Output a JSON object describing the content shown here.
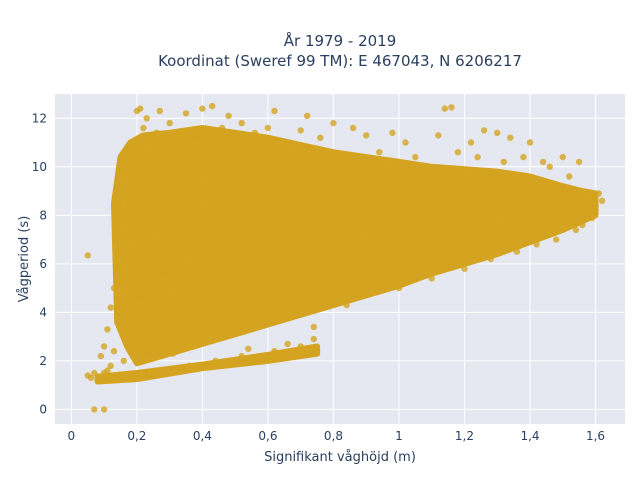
{
  "chart_data": {
    "type": "scatter",
    "title_line1": "År 1979 - 2019",
    "title_line2": "Koordinat (Sweref 99 TM): E 467043, N 6206217",
    "xlabel": "Signifikant våghöjd (m)",
    "ylabel": "Vågperiod (s)",
    "xlim": [
      -0.05,
      1.69
    ],
    "ylim": [
      -0.6,
      13.0
    ],
    "x_ticks": [
      {
        "value": 0,
        "label": "0"
      },
      {
        "value": 0.2,
        "label": "0,2"
      },
      {
        "value": 0.4,
        "label": "0,4"
      },
      {
        "value": 0.6,
        "label": "0,6"
      },
      {
        "value": 0.8,
        "label": "0,8"
      },
      {
        "value": 1.0,
        "label": "1"
      },
      {
        "value": 1.2,
        "label": "1,2"
      },
      {
        "value": 1.4,
        "label": "1,4"
      },
      {
        "value": 1.6,
        "label": "1,6"
      }
    ],
    "y_ticks": [
      {
        "value": 0,
        "label": "0"
      },
      {
        "value": 2,
        "label": "2"
      },
      {
        "value": 4,
        "label": "4"
      },
      {
        "value": 6,
        "label": "6"
      },
      {
        "value": 8,
        "label": "8"
      },
      {
        "value": 10,
        "label": "10"
      },
      {
        "value": 12,
        "label": "12"
      }
    ],
    "grid": true,
    "marker_color": "#d4a420",
    "plot_bg": "#e5e8f0",
    "grid_color": "#ffffff",
    "points": [
      [
        0.07,
        0.0
      ],
      [
        0.1,
        0.0
      ],
      [
        0.05,
        6.35
      ],
      [
        0.05,
        1.4
      ],
      [
        0.06,
        1.3
      ],
      [
        0.07,
        1.5
      ],
      [
        0.08,
        1.2
      ],
      [
        0.09,
        1.35
      ],
      [
        0.1,
        1.5
      ],
      [
        0.11,
        1.6
      ],
      [
        0.09,
        2.2
      ],
      [
        0.1,
        2.6
      ],
      [
        0.11,
        3.3
      ],
      [
        0.12,
        4.2
      ],
      [
        0.12,
        1.8
      ],
      [
        0.13,
        5.0
      ],
      [
        0.13,
        2.4
      ],
      [
        0.14,
        6.2
      ],
      [
        0.14,
        3.6
      ],
      [
        0.15,
        7.4
      ],
      [
        0.15,
        4.8
      ],
      [
        0.16,
        8.4
      ],
      [
        0.16,
        2.0
      ],
      [
        0.17,
        9.4
      ],
      [
        0.17,
        5.8
      ],
      [
        0.18,
        10.2
      ],
      [
        0.18,
        3.0
      ],
      [
        0.19,
        11.0
      ],
      [
        0.19,
        6.8
      ],
      [
        0.2,
        12.3
      ],
      [
        0.2,
        8.0
      ],
      [
        0.21,
        12.4
      ],
      [
        0.21,
        4.4
      ],
      [
        0.22,
        11.6
      ],
      [
        0.22,
        9.0
      ],
      [
        0.23,
        12.0
      ],
      [
        0.23,
        2.1
      ],
      [
        0.24,
        10.8
      ],
      [
        0.25,
        7.2
      ],
      [
        0.26,
        11.4
      ],
      [
        0.27,
        12.3
      ],
      [
        0.28,
        5.4
      ],
      [
        0.29,
        10.6
      ],
      [
        0.3,
        11.8
      ],
      [
        0.31,
        2.3
      ],
      [
        0.32,
        8.6
      ],
      [
        0.33,
        11.2
      ],
      [
        0.35,
        12.2
      ],
      [
        0.36,
        6.2
      ],
      [
        0.38,
        11.0
      ],
      [
        0.4,
        12.4
      ],
      [
        0.41,
        9.4
      ],
      [
        0.43,
        12.5
      ],
      [
        0.44,
        3.1
      ],
      [
        0.46,
        11.6
      ],
      [
        0.48,
        12.1
      ],
      [
        0.5,
        10.2
      ],
      [
        0.52,
        11.8
      ],
      [
        0.54,
        2.5
      ],
      [
        0.56,
        11.4
      ],
      [
        0.58,
        10.0
      ],
      [
        0.6,
        11.6
      ],
      [
        0.62,
        12.3
      ],
      [
        0.64,
        11.0
      ],
      [
        0.66,
        2.7
      ],
      [
        0.68,
        10.8
      ],
      [
        0.7,
        11.5
      ],
      [
        0.72,
        12.1
      ],
      [
        0.74,
        3.4
      ],
      [
        0.76,
        11.2
      ],
      [
        0.78,
        10.6
      ],
      [
        0.8,
        11.8
      ],
      [
        0.82,
        10.2
      ],
      [
        0.84,
        4.3
      ],
      [
        0.86,
        11.6
      ],
      [
        0.88,
        10.4
      ],
      [
        0.9,
        11.3
      ],
      [
        0.92,
        4.8
      ],
      [
        0.94,
        10.6
      ],
      [
        0.96,
        10.2
      ],
      [
        0.98,
        11.4
      ],
      [
        1.0,
        5.0
      ],
      [
        1.02,
        11.0
      ],
      [
        1.05,
        10.4
      ],
      [
        1.08,
        10.0
      ],
      [
        1.1,
        5.4
      ],
      [
        1.12,
        11.3
      ],
      [
        1.14,
        12.4
      ],
      [
        1.16,
        12.45
      ],
      [
        1.18,
        10.6
      ],
      [
        1.2,
        5.8
      ],
      [
        1.22,
        11.0
      ],
      [
        1.24,
        10.4
      ],
      [
        1.26,
        11.5
      ],
      [
        1.28,
        6.2
      ],
      [
        1.3,
        11.4
      ],
      [
        1.32,
        10.2
      ],
      [
        1.34,
        11.2
      ],
      [
        1.36,
        6.5
      ],
      [
        1.38,
        10.4
      ],
      [
        1.4,
        11.0
      ],
      [
        1.42,
        6.8
      ],
      [
        1.44,
        10.2
      ],
      [
        1.46,
        10.0
      ],
      [
        1.48,
        7.0
      ],
      [
        1.5,
        10.4
      ],
      [
        1.52,
        9.6
      ],
      [
        1.54,
        7.4
      ],
      [
        1.55,
        10.2
      ],
      [
        1.56,
        7.6
      ],
      [
        1.57,
        8.8
      ],
      [
        1.58,
        8.2
      ],
      [
        1.59,
        7.9
      ],
      [
        1.6,
        8.4
      ],
      [
        1.61,
        8.9
      ],
      [
        1.62,
        8.6
      ],
      [
        0.74,
        2.9
      ],
      [
        0.7,
        2.6
      ],
      [
        0.62,
        2.4
      ],
      [
        0.52,
        2.2
      ],
      [
        0.44,
        2.0
      ],
      [
        0.36,
        1.8
      ],
      [
        0.28,
        1.6
      ],
      [
        0.22,
        1.5
      ],
      [
        0.3,
        4.8
      ],
      [
        0.5,
        6.0
      ],
      [
        0.7,
        6.8
      ],
      [
        0.9,
        7.2
      ],
      [
        1.1,
        7.6
      ],
      [
        1.3,
        7.8
      ],
      [
        1.5,
        8.2
      ],
      [
        0.4,
        8.5
      ],
      [
        0.6,
        9.0
      ],
      [
        0.8,
        9.4
      ],
      [
        1.0,
        9.6
      ],
      [
        1.2,
        9.8
      ]
    ],
    "envelope": {
      "upper_x": [
        0.13,
        0.15,
        0.18,
        0.22,
        0.3,
        0.4,
        0.5,
        0.6,
        0.7,
        0.8,
        0.9,
        1.0,
        1.1,
        1.2,
        1.3,
        1.4,
        1.5,
        1.56,
        1.6
      ],
      "upper_y": [
        8.5,
        10.4,
        11.0,
        11.3,
        11.4,
        11.6,
        11.4,
        11.2,
        10.9,
        10.6,
        10.4,
        10.2,
        10.0,
        9.9,
        9.8,
        9.6,
        9.2,
        9.0,
        8.9
      ],
      "lower_x": [
        1.6,
        1.5,
        1.4,
        1.3,
        1.2,
        1.1,
        1.0,
        0.9,
        0.8,
        0.7,
        0.6,
        0.5,
        0.4,
        0.3,
        0.25,
        0.2,
        0.17,
        0.14
      ],
      "lower_y": [
        8.0,
        7.4,
        6.9,
        6.4,
        6.0,
        5.6,
        5.1,
        4.7,
        4.3,
        3.9,
        3.5,
        3.1,
        2.7,
        2.3,
        2.1,
        1.9,
        2.6,
        3.6
      ]
    },
    "dense_band": {
      "upper_x": [
        0.08,
        0.2,
        0.4,
        0.6,
        0.75
      ],
      "upper_y": [
        1.35,
        1.5,
        1.85,
        2.25,
        2.6
      ],
      "lower_x": [
        0.75,
        0.6,
        0.4,
        0.2,
        0.08
      ],
      "lower_y": [
        2.3,
        2.0,
        1.7,
        1.25,
        1.15
      ]
    }
  }
}
